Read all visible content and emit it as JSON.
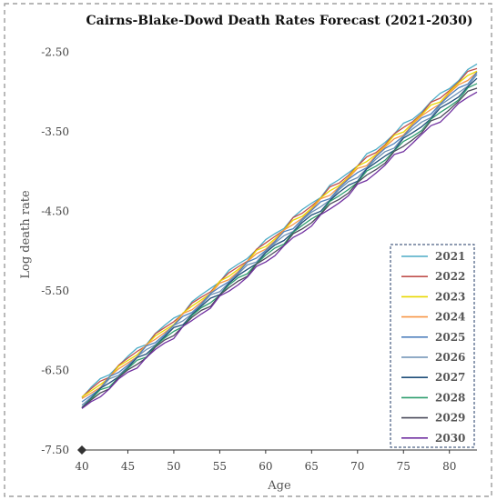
{
  "chart_data": {
    "type": "line",
    "title": "Cairns-Blake-Dowd Death Rates Forecast (2021-2030)",
    "xlabel": "Age",
    "ylabel": "Log death rate",
    "xlim": [
      40,
      83
    ],
    "ylim": [
      -7.5,
      -2.2
    ],
    "x_ticks": [
      40,
      45,
      50,
      55,
      60,
      65,
      70,
      75,
      80
    ],
    "y_ticks": [
      -2.5,
      -3.5,
      -4.5,
      -5.5,
      -6.5,
      -7.5
    ],
    "x_tick_labels": [
      "40",
      "45",
      "50",
      "55",
      "60",
      "65",
      "70",
      "75",
      "80"
    ],
    "y_tick_labels": [
      "-2.50",
      "-3.50",
      "-4.50",
      "-5.50",
      "-6.50",
      "-7.50"
    ],
    "grid": false,
    "legend_position": "bottom-right",
    "series": [
      {
        "name": "2021",
        "color": "#4bacc6",
        "x": [
          40,
          83
        ],
        "y": [
          -6.82,
          -2.65
        ]
      },
      {
        "name": "2022",
        "color": "#c0504d",
        "x": [
          40,
          83
        ],
        "y": [
          -6.84,
          -2.68
        ]
      },
      {
        "name": "2023",
        "color": "#e8d800",
        "x": [
          40,
          83
        ],
        "y": [
          -6.86,
          -2.71
        ]
      },
      {
        "name": "2024",
        "color": "#f79646",
        "x": [
          40,
          83
        ],
        "y": [
          -6.88,
          -2.74
        ]
      },
      {
        "name": "2025",
        "color": "#4f81bd",
        "x": [
          40,
          83
        ],
        "y": [
          -6.9,
          -2.77
        ]
      },
      {
        "name": "2026",
        "color": "#6b8fb3",
        "x": [
          40,
          83
        ],
        "y": [
          -6.92,
          -2.81
        ]
      },
      {
        "name": "2027",
        "color": "#1f4e79",
        "x": [
          40,
          83
        ],
        "y": [
          -6.94,
          -2.85
        ]
      },
      {
        "name": "2028",
        "color": "#2e9e6e",
        "x": [
          40,
          83
        ],
        "y": [
          -6.96,
          -2.89
        ]
      },
      {
        "name": "2029",
        "color": "#4a4a5a",
        "x": [
          40,
          83
        ],
        "y": [
          -6.98,
          -2.93
        ]
      },
      {
        "name": "2030",
        "color": "#7030a0",
        "x": [
          40,
          83
        ],
        "y": [
          -7.0,
          -2.98
        ]
      }
    ]
  }
}
